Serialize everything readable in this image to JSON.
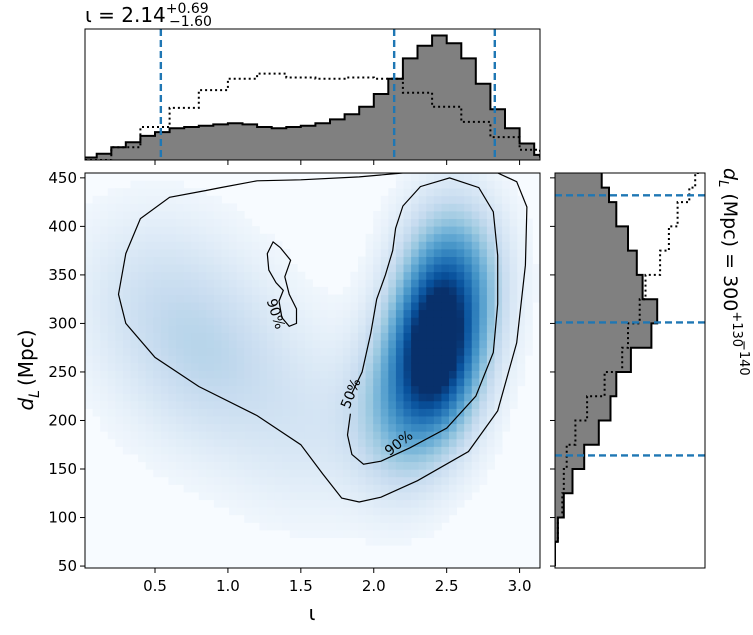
{
  "chart_data": {
    "type": "heatmap",
    "xlabel": "ι",
    "ylabel": "d",
    "ylabel_sub": "L",
    "ylabel_unit": "(Mpc)",
    "xlim": [
      0.02,
      3.14
    ],
    "ylim": [
      48,
      455
    ],
    "xticks": [
      0.5,
      1.0,
      1.5,
      2.0,
      2.5,
      3.0
    ],
    "xtick_labels": [
      "0.5",
      "1.0",
      "1.5",
      "2.0",
      "2.5",
      "3.0"
    ],
    "yticks": [
      50,
      100,
      150,
      200,
      250,
      300,
      350,
      400,
      450
    ],
    "ytick_labels": [
      "50",
      "100",
      "150",
      "200",
      "250",
      "300",
      "350",
      "400",
      "450"
    ],
    "colormap": "Blues",
    "density_peaks": [
      {
        "x": 2.42,
        "y": 270,
        "weight": 1.0
      },
      {
        "x": 2.55,
        "y": 345,
        "weight": 0.55
      },
      {
        "x": 2.18,
        "y": 210,
        "weight": 0.35
      },
      {
        "x": 0.9,
        "y": 260,
        "weight": 0.18
      },
      {
        "x": 0.5,
        "y": 330,
        "weight": 0.13
      },
      {
        "x": 1.55,
        "y": 190,
        "weight": 0.1
      }
    ],
    "contours": [
      {
        "level": "90%",
        "label": "90%",
        "label_pos": [
          2.17,
          177
        ],
        "label_angle": -38,
        "points": [
          [
            0.85,
            437
          ],
          [
            0.6,
            430
          ],
          [
            0.4,
            408
          ],
          [
            0.3,
            372
          ],
          [
            0.25,
            330
          ],
          [
            0.3,
            300
          ],
          [
            0.5,
            265
          ],
          [
            0.8,
            235
          ],
          [
            1.2,
            205
          ],
          [
            1.5,
            175
          ],
          [
            1.65,
            145
          ],
          [
            1.78,
            120
          ],
          [
            1.9,
            116
          ],
          [
            2.05,
            121
          ],
          [
            2.3,
            138
          ],
          [
            2.65,
            168
          ],
          [
            2.85,
            210
          ],
          [
            2.98,
            280
          ],
          [
            3.04,
            360
          ],
          [
            3.05,
            420
          ],
          [
            2.98,
            446
          ],
          [
            2.85,
            455
          ],
          [
            2.5,
            455
          ],
          [
            2.2,
            455
          ],
          [
            1.9,
            451
          ],
          [
            1.5,
            448
          ],
          [
            1.2,
            447
          ],
          [
            0.95,
            440
          ],
          [
            0.85,
            437
          ]
        ]
      },
      {
        "level": "90%",
        "label": "90%",
        "label_pos": [
          1.33,
          310
        ],
        "label_angle": 72,
        "points": [
          [
            1.36,
            378
          ],
          [
            1.31,
            384
          ],
          [
            1.27,
            372
          ],
          [
            1.28,
            355
          ],
          [
            1.33,
            342
          ],
          [
            1.38,
            334
          ],
          [
            1.35,
            323
          ],
          [
            1.37,
            306
          ],
          [
            1.42,
            297
          ],
          [
            1.47,
            300
          ],
          [
            1.47,
            315
          ],
          [
            1.42,
            330
          ],
          [
            1.39,
            348
          ],
          [
            1.43,
            365
          ],
          [
            1.36,
            378
          ]
        ]
      },
      {
        "level": "50%",
        "label": "50%",
        "label_pos": [
          1.84,
          228
        ],
        "label_angle": -68,
        "points": [
          [
            1.84,
            207
          ],
          [
            1.82,
            185
          ],
          [
            1.85,
            165
          ],
          [
            1.93,
            155
          ],
          [
            2.05,
            158
          ],
          [
            2.25,
            172
          ],
          [
            2.5,
            192
          ],
          [
            2.7,
            225
          ],
          [
            2.82,
            270
          ],
          [
            2.85,
            320
          ],
          [
            2.85,
            370
          ],
          [
            2.82,
            415
          ],
          [
            2.72,
            440
          ],
          [
            2.52,
            450
          ],
          [
            2.32,
            441
          ],
          [
            2.2,
            421
          ],
          [
            2.15,
            398
          ],
          [
            2.13,
            375
          ],
          [
            2.08,
            350
          ],
          [
            2.02,
            325
          ],
          [
            1.98,
            290
          ],
          [
            1.92,
            250
          ],
          [
            1.85,
            228
          ]
        ]
      }
    ],
    "top_marginal": {
      "title": "ι = 2.14",
      "title_sup": "+0.69",
      "title_sub": "−1.60",
      "quantile_lines": [
        0.54,
        2.14,
        2.83
      ],
      "posterior": [
        [
          0.02,
          0.02
        ],
        [
          0.1,
          0.05
        ],
        [
          0.2,
          0.1
        ],
        [
          0.3,
          0.14
        ],
        [
          0.4,
          0.19
        ],
        [
          0.5,
          0.22
        ],
        [
          0.6,
          0.25
        ],
        [
          0.7,
          0.26
        ],
        [
          0.8,
          0.27
        ],
        [
          0.9,
          0.28
        ],
        [
          1.0,
          0.29
        ],
        [
          1.1,
          0.28
        ],
        [
          1.2,
          0.26
        ],
        [
          1.3,
          0.25
        ],
        [
          1.4,
          0.26
        ],
        [
          1.5,
          0.27
        ],
        [
          1.6,
          0.29
        ],
        [
          1.7,
          0.32
        ],
        [
          1.8,
          0.36
        ],
        [
          1.9,
          0.42
        ],
        [
          2.0,
          0.52
        ],
        [
          2.1,
          0.64
        ],
        [
          2.2,
          0.8
        ],
        [
          2.3,
          0.9
        ],
        [
          2.4,
          0.98
        ],
        [
          2.5,
          0.92
        ],
        [
          2.6,
          0.8
        ],
        [
          2.7,
          0.6
        ],
        [
          2.8,
          0.4
        ],
        [
          2.9,
          0.25
        ],
        [
          3.0,
          0.13
        ],
        [
          3.1,
          0.04
        ],
        [
          3.14,
          0.02
        ]
      ],
      "prior": [
        [
          0.02,
          0.0
        ],
        [
          0.2,
          0.1
        ],
        [
          0.4,
          0.26
        ],
        [
          0.6,
          0.41
        ],
        [
          0.8,
          0.55
        ],
        [
          1.0,
          0.64
        ],
        [
          1.2,
          0.68
        ],
        [
          1.4,
          0.65
        ],
        [
          1.6,
          0.64
        ],
        [
          1.8,
          0.65
        ],
        [
          2.0,
          0.64
        ],
        [
          2.2,
          0.53
        ],
        [
          2.4,
          0.42
        ],
        [
          2.6,
          0.3
        ],
        [
          2.8,
          0.18
        ],
        [
          3.0,
          0.08
        ],
        [
          3.14,
          0.02
        ]
      ]
    },
    "right_marginal": {
      "title": "d",
      "title_sub": "L",
      "title_rest": " (Mpc) = 300",
      "title_sup": "+130",
      "title_sub2": "−140",
      "quantile_lines": [
        432,
        301,
        164
      ],
      "posterior": [
        [
          50,
          0.0
        ],
        [
          75,
          0.02
        ],
        [
          100,
          0.06
        ],
        [
          125,
          0.12
        ],
        [
          150,
          0.2
        ],
        [
          175,
          0.3
        ],
        [
          200,
          0.38
        ],
        [
          225,
          0.42
        ],
        [
          250,
          0.52
        ],
        [
          275,
          0.66
        ],
        [
          300,
          0.7
        ],
        [
          325,
          0.6
        ],
        [
          350,
          0.56
        ],
        [
          375,
          0.5
        ],
        [
          400,
          0.42
        ],
        [
          425,
          0.37
        ],
        [
          440,
          0.32
        ],
        [
          455,
          0.32
        ]
      ],
      "prior": [
        [
          50,
          0.0
        ],
        [
          75,
          0.02
        ],
        [
          100,
          0.05
        ],
        [
          125,
          0.06
        ],
        [
          150,
          0.08
        ],
        [
          175,
          0.14
        ],
        [
          200,
          0.22
        ],
        [
          225,
          0.34
        ],
        [
          250,
          0.46
        ],
        [
          275,
          0.5
        ],
        [
          300,
          0.58
        ],
        [
          325,
          0.62
        ],
        [
          350,
          0.72
        ],
        [
          375,
          0.78
        ],
        [
          400,
          0.84
        ],
        [
          425,
          0.92
        ],
        [
          440,
          0.96
        ],
        [
          455,
          1.0
        ]
      ]
    },
    "grid": false
  }
}
